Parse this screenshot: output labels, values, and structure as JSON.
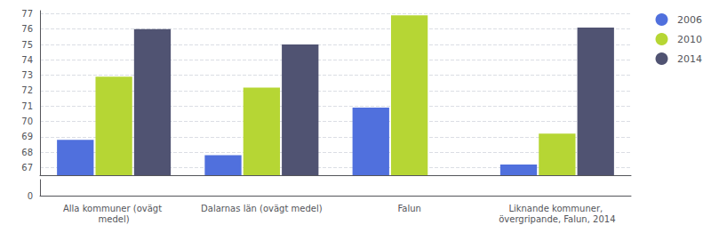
{
  "chart_data": [
    {
      "type": "bar",
      "categories": [
        "Alla kommuner (ovägt medel)",
        "Dalarnas län (ovägt medel)",
        "Falun",
        "Liknande kommuner, övergripande, Falun, 2014"
      ],
      "series": [
        {
          "name": "2006",
          "values": [
            68.8,
            67.8,
            70.9,
            67.2
          ]
        },
        {
          "name": "2010",
          "values": [
            72.9,
            72.2,
            76.9,
            69.2
          ]
        },
        {
          "name": "2014",
          "values": [
            76.0,
            75.0,
            null,
            76.1
          ]
        }
      ],
      "ylim": [
        66.5,
        77.2
      ],
      "yticks": [
        67,
        68,
        69,
        70,
        71,
        72,
        73,
        74,
        75,
        76,
        77
      ],
      "grid": true,
      "legend": "right",
      "tick_labels": "y"
    },
    {
      "type": "bar",
      "categories": [
        "Alla kommuner (ovägt medel)",
        "Dalarnas län (ovägt medel)",
        "Falun",
        "Liknande kommuner, övergripande, Falun, 2014"
      ],
      "ylim": [
        0,
        1
      ],
      "yticks": [
        0
      ],
      "grid": false
    }
  ]
}
